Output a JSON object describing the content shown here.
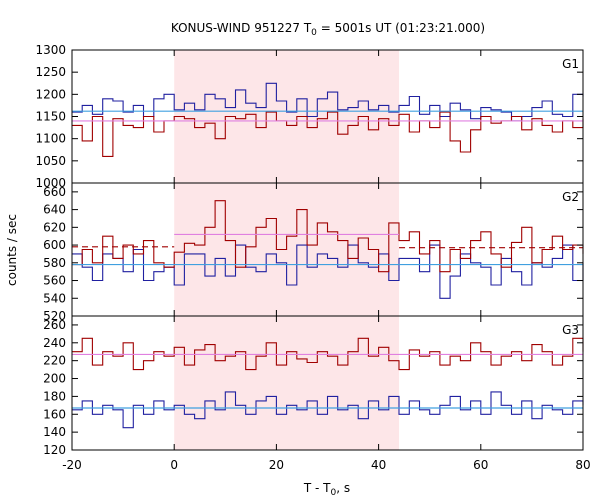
{
  "chart_data": {
    "type": "line",
    "title": "KONUS-WIND 951227 T",
    "title_sub": "0",
    "title_rest": " = 5001s UT (01:23:21.000)",
    "xlabel": "T - T",
    "xlabel_sub": "0",
    "xlabel_rest": ", s",
    "ylabel": "counts / sec",
    "xlim": [
      -20,
      80
    ],
    "x_ticks": [
      -20,
      0,
      20,
      40,
      60,
      80
    ],
    "highlight": {
      "x_start": 0,
      "x_end": 44,
      "color": "#fde6e8"
    },
    "bin_width": 2,
    "colors": {
      "red_series": "#a00000",
      "blue_series": "#2020a0",
      "red_fit": "#e080e0",
      "blue_fit": "#40a0e0"
    },
    "panels": [
      {
        "label": "G1",
        "ylim": [
          1000,
          1300
        ],
        "y_ticks": [
          1000,
          1050,
          1100,
          1150,
          1200,
          1250,
          1300
        ],
        "red_fit": 1140,
        "blue_fit": 1162,
        "red": [
          1130,
          1095,
          1150,
          1060,
          1145,
          1130,
          1125,
          1150,
          1115,
          1140,
          1150,
          1145,
          1125,
          1135,
          1100,
          1150,
          1145,
          1155,
          1125,
          1160,
          1140,
          1130,
          1150,
          1125,
          1145,
          1160,
          1110,
          1130,
          1150,
          1120,
          1145,
          1130,
          1155,
          1115,
          1140,
          1125,
          1160,
          1095,
          1070,
          1120,
          1150,
          1135,
          1140,
          1150,
          1120,
          1145,
          1130,
          1115,
          1140,
          1125,
          1145
        ],
        "blue": [
          1160,
          1175,
          1155,
          1190,
          1185,
          1160,
          1175,
          1150,
          1190,
          1200,
          1165,
          1180,
          1165,
          1200,
          1190,
          1170,
          1210,
          1180,
          1170,
          1225,
          1185,
          1160,
          1190,
          1150,
          1190,
          1205,
          1165,
          1170,
          1185,
          1165,
          1175,
          1160,
          1175,
          1195,
          1155,
          1175,
          1150,
          1180,
          1165,
          1145,
          1170,
          1165,
          1160,
          1140,
          1150,
          1170,
          1185,
          1155,
          1150,
          1200,
          1195
        ]
      },
      {
        "label": "G2",
        "ylim": [
          520,
          670
        ],
        "y_ticks": [
          520,
          540,
          560,
          580,
          600,
          620,
          640,
          660
        ],
        "red_fit": 597,
        "blue_fit": 578,
        "red_fit_segments": [
          {
            "x_start": -20,
            "x_end": 0,
            "value": 598
          },
          {
            "x_start": 0,
            "x_end": 44,
            "value": 612
          },
          {
            "x_start": 44,
            "x_end": 80,
            "value": 597
          }
        ],
        "red": [
          578,
          595,
          580,
          610,
          585,
          600,
          590,
          605,
          580,
          575,
          592,
          602,
          600,
          620,
          650,
          605,
          575,
          598,
          620,
          630,
          595,
          610,
          640,
          600,
          625,
          615,
          605,
          585,
          608,
          595,
          570,
          625,
          605,
          615,
          590,
          605,
          570,
          595,
          585,
          605,
          615,
          590,
          575,
          603,
          620,
          580,
          595,
          610,
          595,
          600,
          590
        ],
        "blue": [
          590,
          575,
          560,
          590,
          585,
          570,
          595,
          560,
          570,
          575,
          555,
          590,
          590,
          565,
          585,
          565,
          600,
          575,
          570,
          590,
          580,
          555,
          600,
          575,
          590,
          585,
          575,
          600,
          580,
          575,
          590,
          560,
          585,
          585,
          570,
          600,
          540,
          565,
          590,
          580,
          575,
          555,
          585,
          570,
          555,
          580,
          575,
          585,
          600,
          560,
          580
        ]
      },
      {
        "label": "G3",
        "ylim": [
          120,
          270
        ],
        "y_ticks": [
          120,
          140,
          160,
          180,
          200,
          220,
          240,
          260
        ],
        "red_fit": 227,
        "blue_fit": 167,
        "red": [
          230,
          245,
          215,
          230,
          225,
          240,
          210,
          220,
          230,
          225,
          235,
          215,
          232,
          238,
          220,
          225,
          230,
          210,
          225,
          240,
          215,
          230,
          222,
          218,
          230,
          225,
          215,
          230,
          245,
          225,
          235,
          220,
          210,
          232,
          225,
          230,
          215,
          225,
          220,
          240,
          230,
          215,
          225,
          230,
          220,
          238,
          230,
          215,
          225,
          245,
          230
        ],
        "blue": [
          165,
          175,
          160,
          170,
          165,
          145,
          170,
          160,
          175,
          165,
          170,
          160,
          155,
          175,
          165,
          185,
          170,
          160,
          175,
          180,
          160,
          170,
          165,
          175,
          160,
          180,
          165,
          170,
          155,
          175,
          165,
          180,
          160,
          175,
          165,
          160,
          170,
          180,
          165,
          175,
          160,
          185,
          170,
          160,
          175,
          155,
          170,
          165,
          160,
          175,
          170
        ]
      }
    ]
  }
}
